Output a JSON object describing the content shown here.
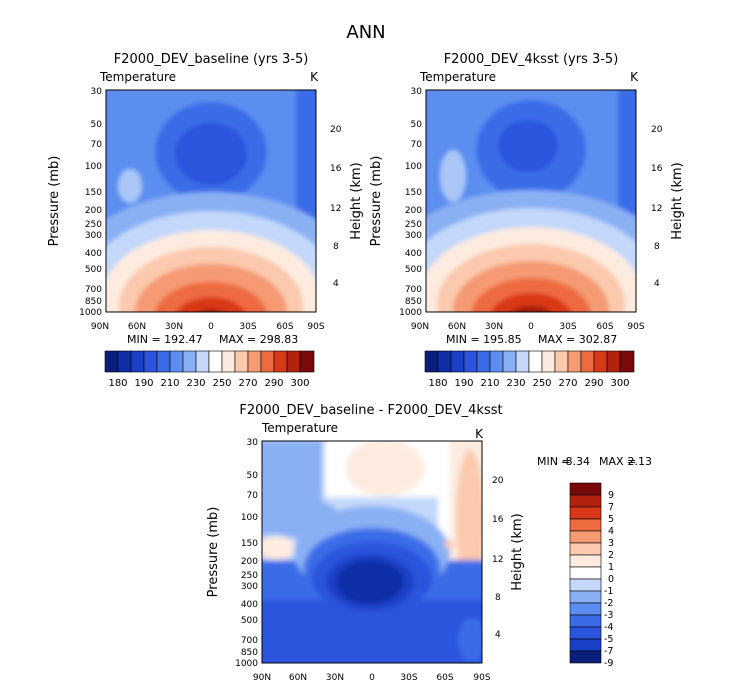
{
  "page_title": "ANN",
  "colors": {
    "colder_max": "#0a1f7a",
    "warmer_max": "#7a0a0a",
    "neutral": "#ffffff"
  },
  "chart_data": [
    {
      "type": "heatmap",
      "title": "F2000_DEV_baseline (yrs 3-5)",
      "variable": "Temperature",
      "units": "K",
      "ylabel": "Pressure (mb)",
      "ylabel_right": "Height (km)",
      "x_ticks": [
        "90N",
        "60N",
        "30N",
        "0",
        "30S",
        "60S",
        "90S"
      ],
      "y_ticks": [
        "30",
        "50",
        "70",
        "100",
        "150",
        "200",
        "250",
        "300",
        "400",
        "500",
        "700",
        "850",
        "1000"
      ],
      "height_ticks": [
        "20",
        "16",
        "12",
        "8",
        "4"
      ],
      "min_text": "MIN = 192.47",
      "max_text": "MAX = 298.83",
      "min": 192.47,
      "max": 298.83,
      "levels": [
        180,
        190,
        200,
        210,
        220,
        230,
        240,
        250,
        260,
        270,
        280,
        290,
        300
      ],
      "level_labels": [
        "180",
        "190",
        "210",
        "230",
        "250",
        "270",
        "290",
        "300"
      ],
      "grid": false
    },
    {
      "type": "heatmap",
      "title": "F2000_DEV_4ksst (yrs 3-5)",
      "variable": "Temperature",
      "units": "K",
      "ylabel": "Pressure (mb)",
      "ylabel_right": "Height (km)",
      "x_ticks": [
        "90N",
        "60N",
        "30N",
        "0",
        "30S",
        "60S",
        "90S"
      ],
      "y_ticks": [
        "30",
        "50",
        "70",
        "100",
        "150",
        "200",
        "250",
        "300",
        "400",
        "500",
        "700",
        "850",
        "1000"
      ],
      "height_ticks": [
        "20",
        "16",
        "12",
        "8",
        "4"
      ],
      "min_text": "MIN = 195.85",
      "max_text": "MAX = 302.87",
      "min": 195.85,
      "max": 302.87,
      "levels": [
        180,
        190,
        200,
        210,
        220,
        230,
        240,
        250,
        260,
        270,
        280,
        290,
        300
      ],
      "level_labels": [
        "180",
        "190",
        "210",
        "230",
        "250",
        "270",
        "290",
        "300"
      ],
      "grid": false
    },
    {
      "type": "heatmap",
      "title": "F2000_DEV_baseline - F2000_DEV_4ksst",
      "variable": "Temperature",
      "units": "K",
      "ylabel": "Pressure (mb)",
      "ylabel_right": "Height (km)",
      "x_ticks": [
        "90N",
        "60N",
        "30N",
        "0",
        "30S",
        "60S",
        "90S"
      ],
      "y_ticks": [
        "30",
        "50",
        "70",
        "100",
        "150",
        "200",
        "250",
        "300",
        "400",
        "500",
        "700",
        "850",
        "1000"
      ],
      "height_ticks": [
        "20",
        "16",
        "12",
        "8",
        "4"
      ],
      "min_label": "MIN =",
      "min_value": "-8.34",
      "max_label": "MAX =",
      "max_value": "2.13",
      "min": -8.34,
      "max": 2.13,
      "levels": [
        9,
        7,
        5,
        4,
        3,
        2,
        1,
        0,
        -1,
        -2,
        -3,
        -4,
        -5,
        -7,
        -9
      ],
      "level_labels": [
        "9",
        "7",
        "5",
        "4",
        "3",
        "2",
        "1",
        "0",
        "-1",
        "-2",
        "-3",
        "-4",
        "-5",
        "-7",
        "-9"
      ],
      "grid": false
    }
  ]
}
